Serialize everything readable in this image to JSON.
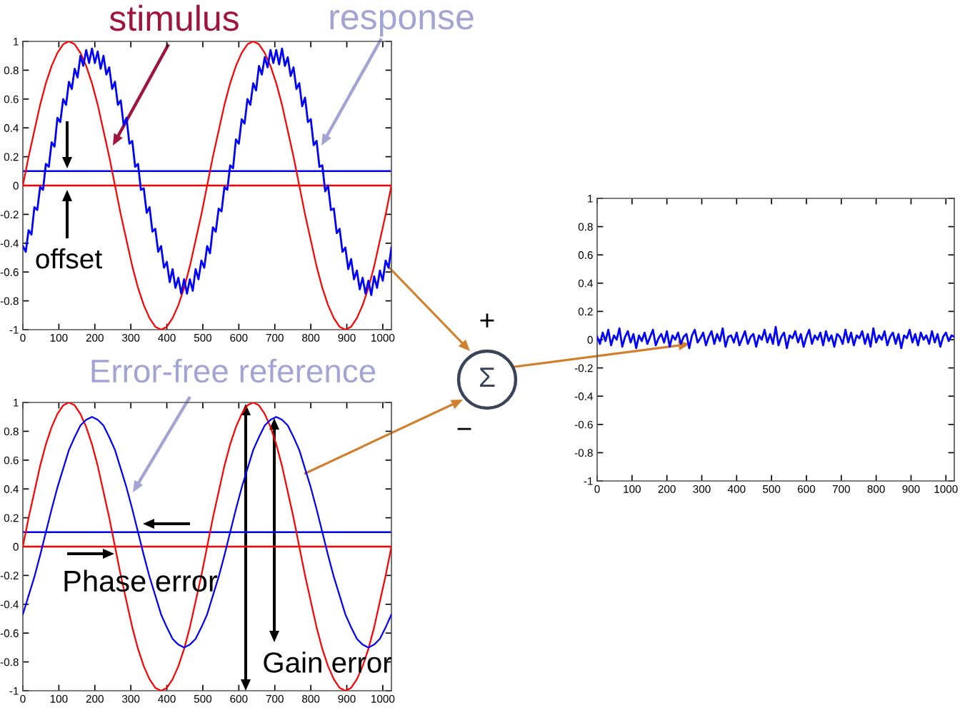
{
  "chart_data": [
    {
      "type": "line",
      "x": [
        0,
        16,
        32,
        48,
        64,
        80,
        96,
        112,
        128,
        144,
        160,
        176,
        192,
        208,
        224,
        240,
        256,
        272,
        288,
        304,
        320,
        336,
        352,
        368,
        384,
        400,
        416,
        432,
        448,
        464,
        480,
        496,
        512,
        528,
        544,
        560,
        576,
        592,
        608,
        624,
        640,
        656,
        672,
        688,
        704,
        720,
        736,
        752,
        768,
        784,
        800,
        816,
        832,
        848,
        864,
        880,
        896,
        912,
        928,
        944,
        960,
        976,
        992,
        1008,
        1024
      ],
      "xlim": [
        0,
        1024
      ],
      "ylim": [
        -1,
        1
      ],
      "xticks": [
        0,
        100,
        200,
        300,
        400,
        500,
        600,
        700,
        800,
        900,
        1000
      ],
      "yticks": [
        -1,
        -0.8,
        -0.6,
        -0.4,
        -0.2,
        0,
        0.2,
        0.4,
        0.6,
        0.8,
        1
      ],
      "series": [
        {
          "name": "stimulus",
          "color": "#ff0000",
          "values": [
            0,
            0.2,
            0.38,
            0.56,
            0.71,
            0.83,
            0.92,
            0.98,
            1,
            0.98,
            0.92,
            0.83,
            0.71,
            0.56,
            0.38,
            0.2,
            0,
            -0.2,
            -0.38,
            -0.56,
            -0.71,
            -0.83,
            -0.92,
            -0.98,
            -1,
            -0.98,
            -0.92,
            -0.83,
            -0.71,
            -0.56,
            -0.38,
            -0.2,
            0,
            0.2,
            0.38,
            0.56,
            0.71,
            0.83,
            0.92,
            0.98,
            1,
            0.98,
            0.92,
            0.83,
            0.71,
            0.56,
            0.38,
            0.2,
            0,
            -0.2,
            -0.38,
            -0.56,
            -0.71,
            -0.83,
            -0.92,
            -0.98,
            -1,
            -0.98,
            -0.92,
            -0.83,
            -0.71,
            -0.56,
            -0.38,
            -0.2,
            0
          ]
        },
        {
          "name": "response",
          "color": "#0000ff",
          "x": [
            0,
            8,
            16,
            24,
            32,
            40,
            48,
            56,
            64,
            72,
            80,
            88,
            96,
            104,
            112,
            120,
            128,
            136,
            144,
            152,
            160,
            168,
            176,
            184,
            192,
            200,
            208,
            216,
            224,
            232,
            240,
            248,
            256,
            264,
            272,
            280,
            288,
            296,
            304,
            312,
            320,
            328,
            336,
            344,
            352,
            360,
            368,
            376,
            384,
            392,
            400,
            408,
            416,
            424,
            432,
            440,
            448,
            456,
            464,
            472,
            480,
            488,
            496,
            504,
            512,
            520,
            528,
            536,
            544,
            552,
            560,
            568,
            576,
            584,
            592,
            600,
            608,
            616,
            624,
            632,
            640,
            648,
            656,
            664,
            672,
            680,
            688,
            696,
            704,
            712,
            720,
            728,
            736,
            744,
            752,
            760,
            768,
            776,
            784,
            792,
            800,
            808,
            816,
            824,
            832,
            840,
            848,
            856,
            864,
            872,
            880,
            888,
            896,
            904,
            912,
            920,
            928,
            936,
            944,
            952,
            960,
            968,
            976,
            984,
            992,
            1000,
            1008,
            1016,
            1024
          ],
          "values": [
            -0.42,
            -0.46,
            -0.31,
            -0.34,
            -0.15,
            -0.17,
            -0.01,
            -0.03,
            0.15,
            0.13,
            0.3,
            0.27,
            0.47,
            0.44,
            0.6,
            0.56,
            0.72,
            0.67,
            0.81,
            0.75,
            0.9,
            0.83,
            0.94,
            0.85,
            0.95,
            0.85,
            0.93,
            0.81,
            0.9,
            0.77,
            0.82,
            0.67,
            0.72,
            0.56,
            0.59,
            0.42,
            0.47,
            0.29,
            0.31,
            0.13,
            0.15,
            -0.03,
            -0.02,
            -0.19,
            -0.15,
            -0.32,
            -0.3,
            -0.46,
            -0.42,
            -0.57,
            -0.53,
            -0.67,
            -0.58,
            -0.71,
            -0.64,
            -0.75,
            -0.65,
            -0.75,
            -0.65,
            -0.73,
            -0.58,
            -0.65,
            -0.52,
            -0.57,
            -0.42,
            -0.47,
            -0.29,
            -0.32,
            -0.16,
            -0.18,
            -0.01,
            -0.03,
            0.14,
            0.12,
            0.32,
            0.29,
            0.46,
            0.43,
            0.6,
            0.56,
            0.71,
            0.66,
            0.83,
            0.77,
            0.89,
            0.82,
            0.94,
            0.85,
            0.94,
            0.84,
            0.95,
            0.83,
            0.89,
            0.76,
            0.82,
            0.67,
            0.71,
            0.55,
            0.61,
            0.44,
            0.46,
            0.28,
            0.31,
            0.13,
            0.14,
            -0.04,
            0,
            -0.17,
            -0.16,
            -0.33,
            -0.3,
            -0.46,
            -0.43,
            -0.58,
            -0.51,
            -0.65,
            -0.59,
            -0.72,
            -0.64,
            -0.75,
            -0.66,
            -0.76,
            -0.63,
            -0.71,
            -0.59,
            -0.66,
            -0.52,
            -0.57,
            -0.43
          ]
        }
      ],
      "ref_lines": [
        {
          "axis": "y",
          "value": 0.1,
          "color": "#0000ff"
        },
        {
          "axis": "y",
          "value": 0,
          "color": "#ff0000"
        }
      ],
      "annotations": [
        "offset"
      ]
    },
    {
      "type": "line",
      "x": [
        0,
        16,
        32,
        48,
        64,
        80,
        96,
        112,
        128,
        144,
        160,
        176,
        192,
        208,
        224,
        240,
        256,
        272,
        288,
        304,
        320,
        336,
        352,
        368,
        384,
        400,
        416,
        432,
        448,
        464,
        480,
        496,
        512,
        528,
        544,
        560,
        576,
        592,
        608,
        624,
        640,
        656,
        672,
        688,
        704,
        720,
        736,
        752,
        768,
        784,
        800,
        816,
        832,
        848,
        864,
        880,
        896,
        912,
        928,
        944,
        960,
        976,
        992,
        1008,
        1024
      ],
      "xlim": [
        0,
        1024
      ],
      "ylim": [
        -1,
        1
      ],
      "xticks": [
        0,
        100,
        200,
        300,
        400,
        500,
        600,
        700,
        800,
        900,
        1000
      ],
      "yticks": [
        -1,
        -0.8,
        -0.6,
        -0.4,
        -0.2,
        0,
        0.2,
        0.4,
        0.6,
        0.8,
        1
      ],
      "series": [
        {
          "color": "#ff0000",
          "values": [
            0,
            0.2,
            0.38,
            0.56,
            0.71,
            0.83,
            0.92,
            0.98,
            1,
            0.98,
            0.92,
            0.83,
            0.71,
            0.56,
            0.38,
            0.2,
            0,
            -0.2,
            -0.38,
            -0.56,
            -0.71,
            -0.83,
            -0.92,
            -0.98,
            -1,
            -0.98,
            -0.92,
            -0.83,
            -0.71,
            -0.56,
            -0.38,
            -0.2,
            0,
            0.2,
            0.38,
            0.56,
            0.71,
            0.83,
            0.92,
            0.98,
            1,
            0.98,
            0.92,
            0.83,
            0.71,
            0.56,
            0.38,
            0.2,
            0,
            -0.2,
            -0.38,
            -0.56,
            -0.71,
            -0.83,
            -0.92,
            -0.98,
            -1,
            -0.98,
            -0.92,
            -0.83,
            -0.71,
            -0.56,
            -0.38,
            -0.2,
            0
          ]
        },
        {
          "name": "Error-free reference",
          "color": "#0000ff",
          "values": [
            -0.47,
            -0.34,
            -0.21,
            -0.06,
            0.1,
            0.26,
            0.41,
            0.54,
            0.67,
            0.76,
            0.84,
            0.88,
            0.9,
            0.88,
            0.84,
            0.76,
            0.67,
            0.54,
            0.41,
            0.26,
            0.1,
            -0.06,
            -0.21,
            -0.34,
            -0.47,
            -0.56,
            -0.64,
            -0.68,
            -0.7,
            -0.68,
            -0.64,
            -0.56,
            -0.47,
            -0.34,
            -0.21,
            -0.06,
            0.1,
            0.26,
            0.41,
            0.54,
            0.67,
            0.76,
            0.84,
            0.88,
            0.9,
            0.88,
            0.84,
            0.76,
            0.67,
            0.54,
            0.41,
            0.26,
            0.1,
            -0.06,
            -0.21,
            -0.34,
            -0.47,
            -0.56,
            -0.64,
            -0.68,
            -0.7,
            -0.68,
            -0.64,
            -0.56,
            -0.47
          ]
        }
      ],
      "ref_lines": [
        {
          "axis": "y",
          "value": 0.1,
          "color": "#0000ff"
        },
        {
          "axis": "y",
          "value": 0,
          "color": "#ff0000"
        }
      ],
      "annotations": [
        "Phase error",
        "Gain error"
      ]
    },
    {
      "type": "line",
      "x": [
        0,
        8,
        16,
        24,
        32,
        40,
        48,
        56,
        64,
        72,
        80,
        88,
        96,
        104,
        112,
        120,
        128,
        136,
        144,
        152,
        160,
        168,
        176,
        184,
        192,
        200,
        208,
        216,
        224,
        232,
        240,
        248,
        256,
        264,
        272,
        280,
        288,
        296,
        304,
        312,
        320,
        328,
        336,
        344,
        352,
        360,
        368,
        376,
        384,
        392,
        400,
        408,
        416,
        424,
        432,
        440,
        448,
        456,
        464,
        472,
        480,
        488,
        496,
        504,
        512,
        520,
        528,
        536,
        544,
        552,
        560,
        568,
        576,
        584,
        592,
        600,
        608,
        616,
        624,
        632,
        640,
        648,
        656,
        664,
        672,
        680,
        688,
        696,
        704,
        712,
        720,
        728,
        736,
        744,
        752,
        760,
        768,
        776,
        784,
        792,
        800,
        808,
        816,
        824,
        832,
        840,
        848,
        856,
        864,
        872,
        880,
        888,
        896,
        904,
        912,
        920,
        928,
        936,
        944,
        952,
        960,
        968,
        976,
        984,
        992,
        1000,
        1008,
        1016,
        1024
      ],
      "xlim": [
        0,
        1024
      ],
      "ylim": [
        -1,
        1
      ],
      "xticks": [
        0,
        100,
        200,
        300,
        400,
        500,
        600,
        700,
        800,
        900,
        1000
      ],
      "yticks": [
        -1,
        -0.8,
        -0.6,
        -0.4,
        -0.2,
        0,
        0.2,
        0.4,
        0.6,
        0.8,
        1
      ],
      "series": [
        {
          "color": "#0000ff",
          "values": [
            0.02,
            -0.03,
            0.05,
            -0.01,
            0.07,
            -0.04,
            0.03,
            0.0,
            0.08,
            -0.05,
            0.02,
            0.06,
            -0.02,
            0.04,
            -0.06,
            0.03,
            -0.01,
            0.05,
            -0.03,
            0.02,
            0.07,
            -0.04,
            0.01,
            0.04,
            -0.02,
            0.06,
            -0.05,
            0.03,
            0.0,
            0.05,
            -0.03,
            0.02,
            0.04,
            -0.06,
            0.03,
            0.07,
            -0.02,
            0.01,
            0.05,
            -0.04,
            0.02,
            0.06,
            -0.03,
            0.04,
            -0.01,
            0.08,
            -0.05,
            0.02,
            0.03,
            -0.02,
            0.05,
            -0.04,
            0.01,
            0.06,
            -0.03,
            0.02,
            0.04,
            -0.05,
            0.03,
            0.0,
            0.07,
            -0.02,
            0.04,
            -0.03,
            0.09,
            -0.04,
            0.02,
            0.05,
            -0.06,
            0.03,
            0.01,
            0.06,
            -0.02,
            0.04,
            -0.05,
            0.02,
            0.07,
            -0.03,
            0.03,
            0.0,
            0.05,
            -0.04,
            0.06,
            -0.01,
            0.03,
            -0.05,
            0.04,
            0.02,
            -0.03,
            0.07,
            -0.02,
            0.05,
            -0.04,
            0.03,
            0.01,
            0.06,
            -0.03,
            0.04,
            -0.05,
            0.08,
            -0.02,
            0.03,
            0.0,
            0.06,
            -0.04,
            0.02,
            0.05,
            -0.03,
            0.04,
            -0.06,
            0.03,
            0.01,
            0.07,
            -0.02,
            0.04,
            -0.04,
            0.05,
            0.0,
            0.03,
            -0.03,
            0.06,
            -0.02,
            0.04,
            -0.05,
            0.02,
            0.05,
            -0.01,
            0.03,
            0.02
          ]
        }
      ],
      "annotations": [
        "+",
        "Σ",
        "−"
      ]
    }
  ]
}
